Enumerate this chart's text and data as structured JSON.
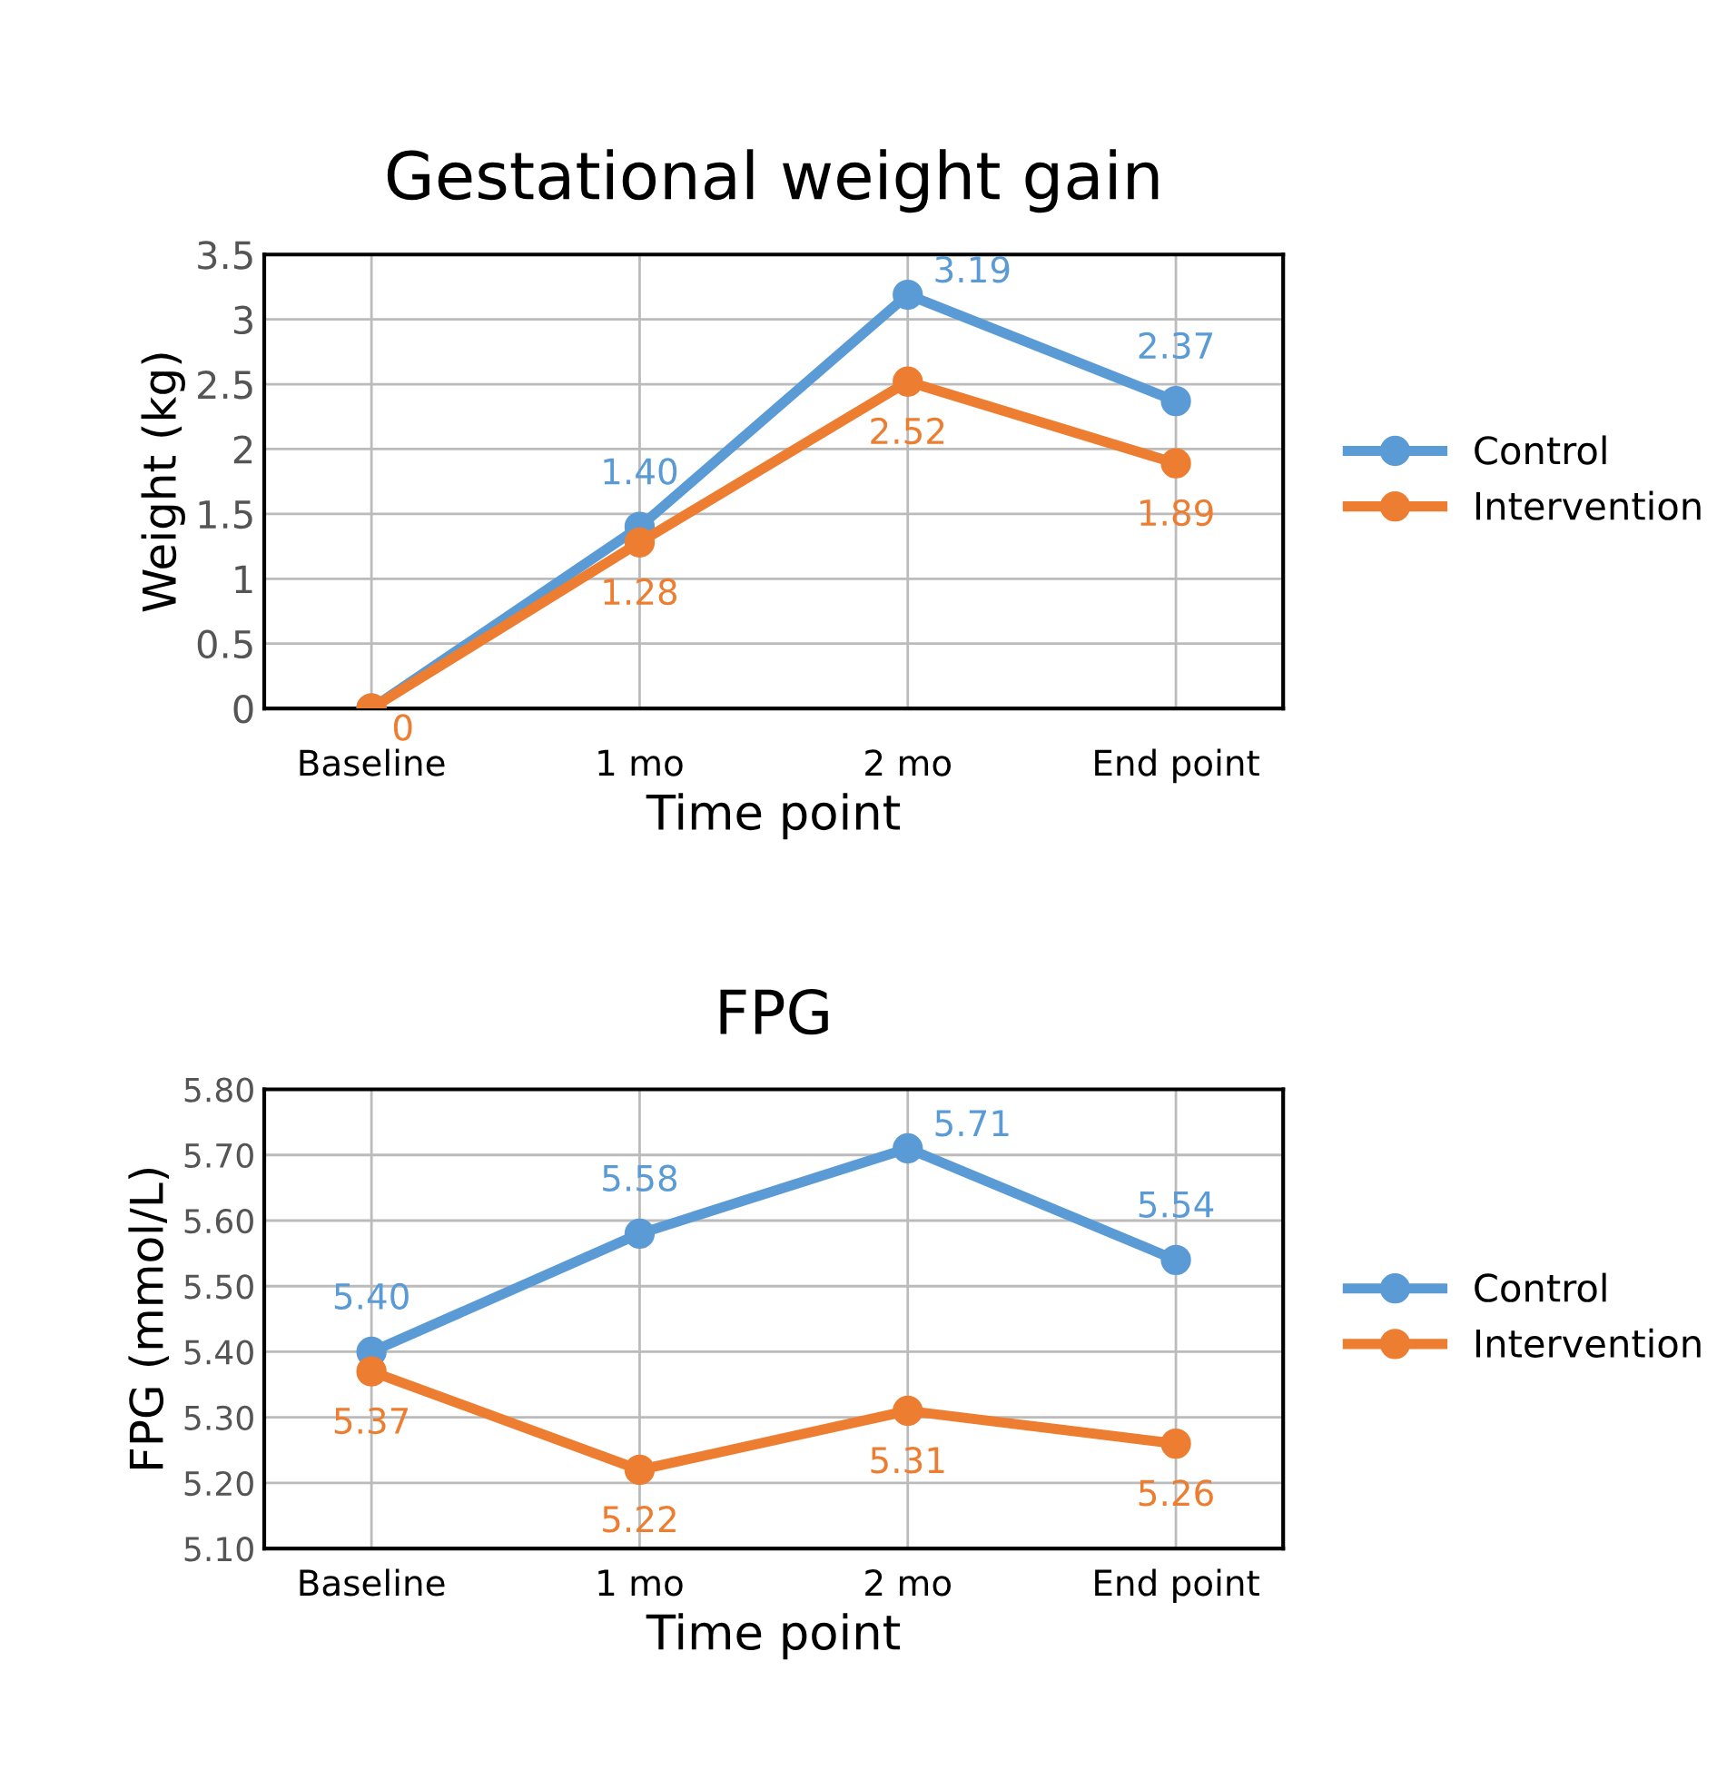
{
  "chart_data": [
    {
      "type": "line",
      "title": "Gestational weight gain",
      "xlabel": "Time point",
      "ylabel": "Weight (kg)",
      "categories": [
        "Baseline",
        "1 mo",
        "2 mo",
        "End point"
      ],
      "series": [
        {
          "name": "Control",
          "color": "#5b9bd5",
          "values": [
            0,
            1.4,
            3.19,
            2.37
          ],
          "value_labels": [
            null,
            "1.40",
            "3.19",
            "2.37"
          ]
        },
        {
          "name": "Intervention",
          "color": "#ed7d31",
          "values": [
            0,
            1.28,
            2.52,
            1.89
          ],
          "value_labels": [
            "0",
            "1.28",
            "2.52",
            "1.89"
          ]
        }
      ],
      "ylim": [
        0,
        3.5
      ],
      "yticks": [
        0,
        0.5,
        1,
        1.5,
        2,
        2.5,
        3,
        3.5
      ],
      "grid": true,
      "legend": "right",
      "marker": "circle",
      "line_style": "solid"
    },
    {
      "type": "line",
      "title": "FPG",
      "xlabel": "Time point",
      "ylabel": "FPG (mmol/L)",
      "categories": [
        "Baseline",
        "1 mo",
        "2 mo",
        "End point"
      ],
      "series": [
        {
          "name": "Control",
          "color": "#5b9bd5",
          "values": [
            5.4,
            5.58,
            5.71,
            5.54
          ],
          "value_labels": [
            "5.40",
            "5.58",
            "5.71",
            "5.54"
          ]
        },
        {
          "name": "Intervention",
          "color": "#ed7d31",
          "values": [
            5.37,
            5.22,
            5.31,
            5.26
          ],
          "value_labels": [
            "5.37",
            "5.22",
            "5.31",
            "5.26"
          ]
        }
      ],
      "ylim": [
        5.1,
        5.8
      ],
      "yticks": [
        {
          "value": 5.1,
          "label": "5.10"
        },
        {
          "value": 5.2,
          "label": "5.20"
        },
        {
          "value": 5.3,
          "label": "5.30"
        },
        {
          "value": 5.4,
          "label": "5.40"
        },
        {
          "value": 5.5,
          "label": "5.50"
        },
        {
          "value": 5.6,
          "label": "5.60"
        },
        {
          "value": 5.7,
          "label": "5.70"
        },
        {
          "value": 5.8,
          "label": "5.80"
        }
      ],
      "grid": true,
      "legend": "right",
      "marker": "circle",
      "line_style": "solid"
    }
  ]
}
